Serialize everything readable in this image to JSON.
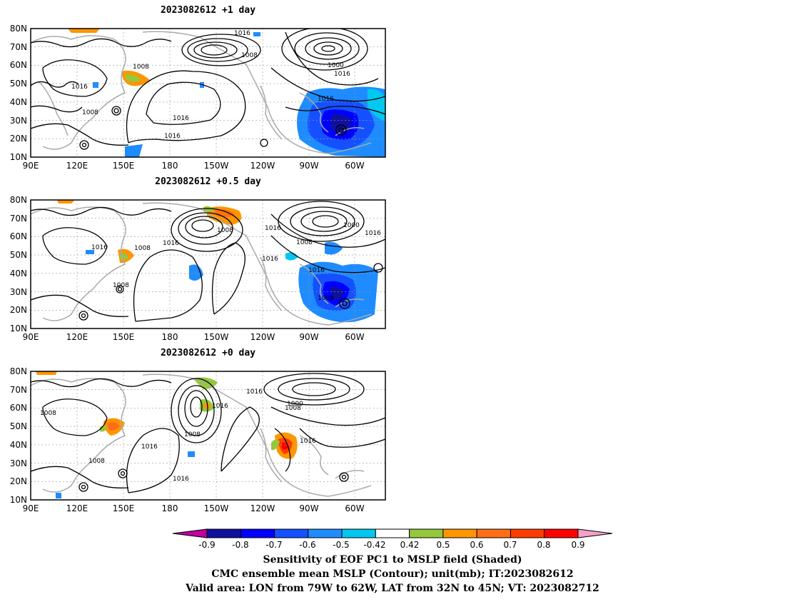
{
  "panels": [
    {
      "title": "2023082612 +1 day",
      "contour_labels": [
        "1016",
        "1008",
        "1008",
        "1016",
        "1000",
        "1016",
        "1016",
        "1008",
        "1016",
        "1016"
      ]
    },
    {
      "title": "2023082612 +0.5 day",
      "contour_labels": [
        "1008",
        "1016",
        "1000",
        "1016",
        "1016",
        "1016",
        "1008",
        "1016",
        "1016",
        "1008",
        "1008"
      ]
    },
    {
      "title": "2023082612 +0 day",
      "contour_labels": [
        "1016",
        "1016",
        "1000",
        "1008",
        "1008",
        "1008",
        "1016",
        "1016",
        "1008",
        "1016"
      ]
    }
  ],
  "axes": {
    "lat_ticks": [
      "80N",
      "70N",
      "60N",
      "50N",
      "40N",
      "30N",
      "20N",
      "10N"
    ],
    "lon_ticks": [
      "90E",
      "120E",
      "150E",
      "180",
      "150W",
      "120W",
      "90W",
      "60W"
    ]
  },
  "colorbar": {
    "labels": [
      "-0.9",
      "-0.8",
      "-0.7",
      "-0.6",
      "-0.5",
      "-0.42",
      "0.42",
      "0.5",
      "0.6",
      "0.7",
      "0.8",
      "0.9"
    ],
    "colors": {
      "low_end": "#c000a0",
      "bins": [
        "#1010a0",
        "#0000ff",
        "#1450ff",
        "#1e8cff",
        "#00c8f0",
        "#ffffff",
        "#96c83c",
        "#ff9600",
        "#ff6e14",
        "#ff3c00",
        "#ff0000"
      ],
      "high_end": "#f4a0c8"
    }
  },
  "caption": {
    "line1": "Sensitivity of EOF PC1 to MSLP field (Shaded)",
    "line2": "CMC ensemble mean MSLP (Contour); unit(mb); IT:2023082612",
    "line3": "Valid area: LON from 79W to 62W, LAT from 32N to 45N; VT: 2023082712"
  }
}
